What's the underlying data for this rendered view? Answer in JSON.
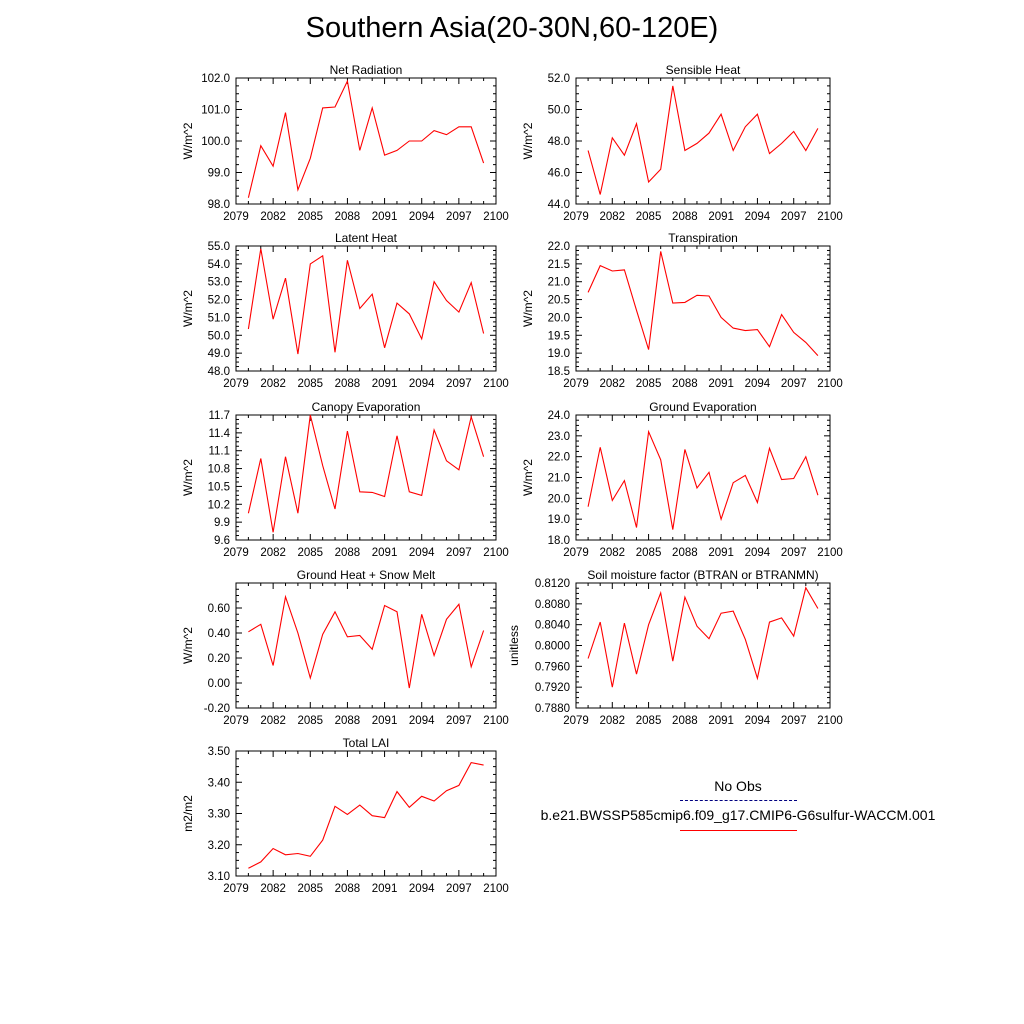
{
  "figure": {
    "title": "Southern Asia(20-30N,60-120E)"
  },
  "colors": {
    "model_line": "#ff0000",
    "obs_line": "#000080",
    "axis": "#000000"
  },
  "legend": {
    "items": [
      {
        "label": "No Obs",
        "style": "dashed",
        "color": "#000080"
      },
      {
        "label": "b.e21.BWSSP585cmip6.f09_g17.CMIP6-G6sulfur-WACCM.001",
        "style": "solid",
        "color": "#ff0000"
      }
    ]
  },
  "chart_data": [
    {
      "type": "line",
      "title": "Net Radiation",
      "xlabel": "",
      "ylabel": "W/m^2",
      "xlim": [
        2079,
        2100
      ],
      "ylim": [
        98.0,
        102.0
      ],
      "xticks": [
        "2079",
        "2082",
        "2085",
        "2088",
        "2091",
        "2094",
        "2097",
        "2100"
      ],
      "yticks": [
        "98.0",
        "99.0",
        "100.0",
        "101.0",
        "102.0"
      ],
      "x": [
        2080,
        2081,
        2082,
        2083,
        2084,
        2085,
        2086,
        2087,
        2088,
        2089,
        2090,
        2091,
        2092,
        2093,
        2094,
        2095,
        2096,
        2097,
        2098,
        2099
      ],
      "series": [
        {
          "values": [
            98.2,
            99.85,
            99.2,
            100.9,
            98.45,
            99.45,
            101.05,
            101.08,
            101.9,
            99.7,
            101.05,
            99.55,
            99.7,
            100.0,
            100.0,
            100.33,
            100.2,
            100.45,
            100.45,
            99.3
          ]
        }
      ]
    },
    {
      "type": "line",
      "title": "Sensible Heat",
      "xlabel": "",
      "ylabel": "W/m^2",
      "xlim": [
        2079,
        2100
      ],
      "ylim": [
        44.0,
        52.0
      ],
      "xticks": [
        "2079",
        "2082",
        "2085",
        "2088",
        "2091",
        "2094",
        "2097",
        "2100"
      ],
      "yticks": [
        "44.0",
        "46.0",
        "48.0",
        "50.0",
        "52.0"
      ],
      "x": [
        2080,
        2081,
        2082,
        2083,
        2084,
        2085,
        2086,
        2087,
        2088,
        2089,
        2090,
        2091,
        2092,
        2093,
        2094,
        2095,
        2096,
        2097,
        2098,
        2099
      ],
      "series": [
        {
          "values": [
            47.4,
            44.6,
            48.2,
            47.1,
            49.1,
            45.4,
            46.2,
            51.5,
            47.4,
            47.85,
            48.5,
            49.7,
            47.4,
            48.9,
            49.7,
            47.2,
            47.85,
            48.6,
            47.4,
            48.8
          ]
        }
      ]
    },
    {
      "type": "line",
      "title": "Latent Heat",
      "xlabel": "",
      "ylabel": "W/m^2",
      "xlim": [
        2079,
        2100
      ],
      "ylim": [
        48.0,
        55.0
      ],
      "xticks": [
        "2079",
        "2082",
        "2085",
        "2088",
        "2091",
        "2094",
        "2097",
        "2100"
      ],
      "yticks": [
        "48.0",
        "49.0",
        "50.0",
        "51.0",
        "52.0",
        "53.0",
        "54.0",
        "55.0"
      ],
      "x": [
        2080,
        2081,
        2082,
        2083,
        2084,
        2085,
        2086,
        2087,
        2088,
        2089,
        2090,
        2091,
        2092,
        2093,
        2094,
        2095,
        2096,
        2097,
        2098,
        2099
      ],
      "series": [
        {
          "values": [
            50.35,
            54.85,
            50.9,
            53.2,
            48.95,
            54.0,
            54.45,
            49.05,
            54.2,
            51.5,
            52.3,
            49.3,
            51.8,
            51.2,
            49.8,
            53.0,
            51.95,
            51.3,
            52.95,
            50.1
          ]
        }
      ]
    },
    {
      "type": "line",
      "title": "Transpiration",
      "xlabel": "",
      "ylabel": "W/m^2",
      "xlim": [
        2079,
        2100
      ],
      "ylim": [
        18.5,
        22.0
      ],
      "xticks": [
        "2079",
        "2082",
        "2085",
        "2088",
        "2091",
        "2094",
        "2097",
        "2100"
      ],
      "yticks": [
        "18.5",
        "19.0",
        "19.5",
        "20.0",
        "20.5",
        "21.0",
        "21.5",
        "22.0"
      ],
      "x": [
        2080,
        2081,
        2082,
        2083,
        2084,
        2085,
        2086,
        2087,
        2088,
        2089,
        2090,
        2091,
        2092,
        2093,
        2094,
        2095,
        2096,
        2097,
        2098,
        2099
      ],
      "series": [
        {
          "values": [
            20.7,
            21.45,
            21.3,
            21.33,
            20.2,
            19.1,
            21.85,
            20.4,
            20.42,
            20.62,
            20.6,
            20.0,
            19.7,
            19.63,
            19.66,
            19.18,
            20.08,
            19.58,
            19.3,
            18.93
          ]
        }
      ]
    },
    {
      "type": "line",
      "title": "Canopy Evaporation",
      "xlabel": "",
      "ylabel": "W/m^2",
      "xlim": [
        2079,
        2100
      ],
      "ylim": [
        9.6,
        11.7
      ],
      "xticks": [
        "2079",
        "2082",
        "2085",
        "2088",
        "2091",
        "2094",
        "2097",
        "2100"
      ],
      "yticks": [
        "9.6",
        "9.9",
        "10.2",
        "10.5",
        "10.8",
        "11.1",
        "11.4",
        "11.7"
      ],
      "x": [
        2080,
        2081,
        2082,
        2083,
        2084,
        2085,
        2086,
        2087,
        2088,
        2089,
        2090,
        2091,
        2092,
        2093,
        2094,
        2095,
        2096,
        2097,
        2098,
        2099
      ],
      "series": [
        {
          "values": [
            10.05,
            10.97,
            9.73,
            11.0,
            10.05,
            11.7,
            10.85,
            10.12,
            11.43,
            10.41,
            10.4,
            10.33,
            11.35,
            10.41,
            10.35,
            11.45,
            10.93,
            10.78,
            11.67,
            11.0
          ]
        }
      ]
    },
    {
      "type": "line",
      "title": "Ground Evaporation",
      "xlabel": "",
      "ylabel": "W/m^2",
      "xlim": [
        2079,
        2100
      ],
      "ylim": [
        18.0,
        24.0
      ],
      "xticks": [
        "2079",
        "2082",
        "2085",
        "2088",
        "2091",
        "2094",
        "2097",
        "2100"
      ],
      "yticks": [
        "18.0",
        "19.0",
        "20.0",
        "21.0",
        "22.0",
        "23.0",
        "24.0"
      ],
      "x": [
        2080,
        2081,
        2082,
        2083,
        2084,
        2085,
        2086,
        2087,
        2088,
        2089,
        2090,
        2091,
        2092,
        2093,
        2094,
        2095,
        2096,
        2097,
        2098,
        2099
      ],
      "series": [
        {
          "values": [
            19.6,
            22.45,
            19.9,
            20.85,
            18.6,
            23.2,
            21.85,
            18.5,
            22.35,
            20.5,
            21.25,
            19.0,
            20.75,
            21.1,
            19.8,
            22.4,
            20.9,
            20.95,
            22.0,
            20.15
          ]
        }
      ]
    },
    {
      "type": "line",
      "title": "Ground Heat + Snow Melt",
      "xlabel": "",
      "ylabel": "W/m^2",
      "xlim": [
        2079,
        2100
      ],
      "ylim": [
        -0.2,
        0.8
      ],
      "xticks": [
        "2079",
        "2082",
        "2085",
        "2088",
        "2091",
        "2094",
        "2097",
        "2100"
      ],
      "yticks": [
        "-0.20",
        "0.00",
        "0.20",
        "0.40",
        "0.60"
      ],
      "x": [
        2080,
        2081,
        2082,
        2083,
        2084,
        2085,
        2086,
        2087,
        2088,
        2089,
        2090,
        2091,
        2092,
        2093,
        2094,
        2095,
        2096,
        2097,
        2098,
        2099
      ],
      "series": [
        {
          "values": [
            0.41,
            0.47,
            0.14,
            0.69,
            0.4,
            0.04,
            0.39,
            0.57,
            0.37,
            0.38,
            0.27,
            0.62,
            0.57,
            -0.04,
            0.55,
            0.22,
            0.51,
            0.63,
            0.13,
            0.42
          ]
        }
      ]
    },
    {
      "type": "line",
      "title": "Soil moisture factor (BTRAN or BTRANMN)",
      "xlabel": "",
      "ylabel": "unitless",
      "xlim": [
        2079,
        2100
      ],
      "ylim": [
        0.788,
        0.812
      ],
      "xticks": [
        "2079",
        "2082",
        "2085",
        "2088",
        "2091",
        "2094",
        "2097",
        "2100"
      ],
      "yticks": [
        "0.7880",
        "0.7920",
        "0.7960",
        "0.8000",
        "0.8040",
        "0.8080",
        "0.8120"
      ],
      "x": [
        2080,
        2081,
        2082,
        2083,
        2084,
        2085,
        2086,
        2087,
        2088,
        2089,
        2090,
        2091,
        2092,
        2093,
        2094,
        2095,
        2096,
        2097,
        2098,
        2099
      ],
      "series": [
        {
          "values": [
            0.7975,
            0.8045,
            0.792,
            0.8043,
            0.7945,
            0.804,
            0.8101,
            0.797,
            0.8093,
            0.8037,
            0.8013,
            0.8062,
            0.8066,
            0.8012,
            0.7937,
            0.8045,
            0.8053,
            0.8018,
            0.8111,
            0.8071
          ]
        }
      ]
    },
    {
      "type": "line",
      "title": "Total LAI",
      "xlabel": "",
      "ylabel": "m2/m2",
      "xlim": [
        2079,
        2100
      ],
      "ylim": [
        3.1,
        3.5
      ],
      "xticks": [
        "2079",
        "2082",
        "2085",
        "2088",
        "2091",
        "2094",
        "2097",
        "2100"
      ],
      "yticks": [
        "3.10",
        "3.20",
        "3.30",
        "3.40",
        "3.50"
      ],
      "x": [
        2080,
        2081,
        2082,
        2083,
        2084,
        2085,
        2086,
        2087,
        2088,
        2089,
        2090,
        2091,
        2092,
        2093,
        2094,
        2095,
        2096,
        2097,
        2098,
        2099
      ],
      "series": [
        {
          "values": [
            3.125,
            3.145,
            3.188,
            3.168,
            3.172,
            3.163,
            3.215,
            3.323,
            3.297,
            3.327,
            3.293,
            3.287,
            3.37,
            3.32,
            3.355,
            3.34,
            3.373,
            3.39,
            3.463,
            3.455
          ]
        }
      ]
    }
  ]
}
